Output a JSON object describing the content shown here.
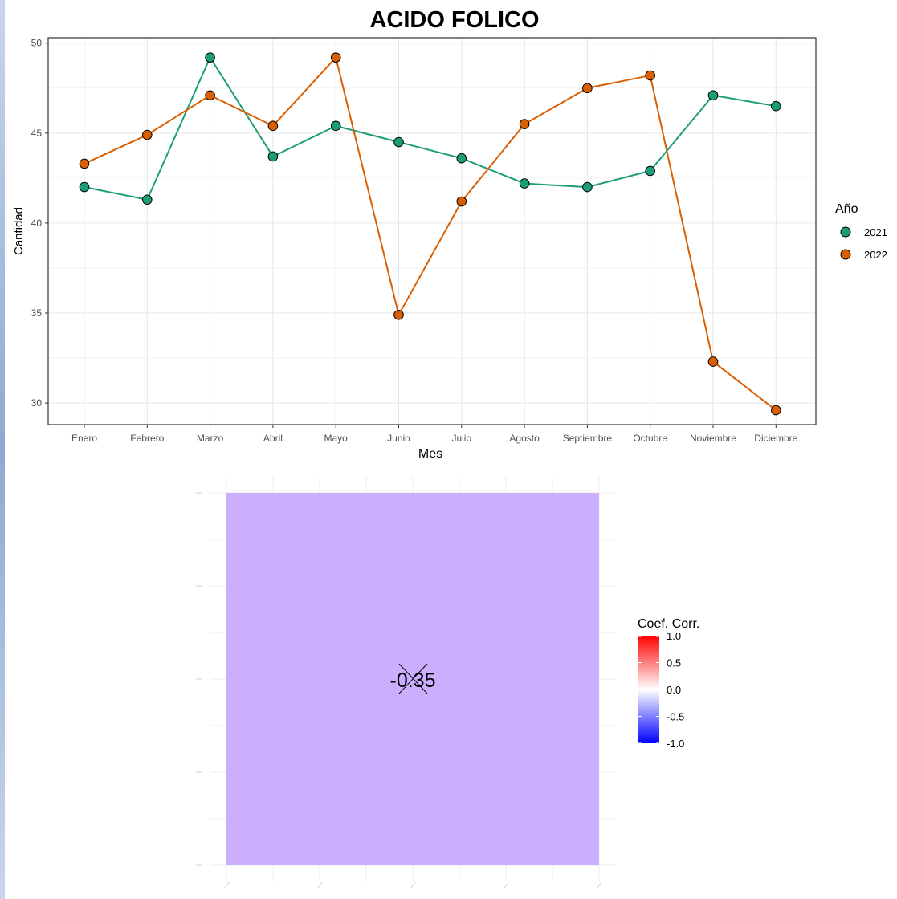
{
  "chart_data": [
    {
      "type": "line",
      "title": "ACIDO FOLICO",
      "xlabel": "Mes",
      "ylabel": "Cantidad",
      "categories": [
        "Enero",
        "Febrero",
        "Marzo",
        "Abril",
        "Mayo",
        "Junio",
        "Julio",
        "Agosto",
        "Septiembre",
        "Octubre",
        "Noviembre",
        "Diciembre"
      ],
      "ylim": [
        28.8,
        50.3
      ],
      "yticks": [
        30,
        35,
        40,
        45,
        50
      ],
      "grid": true,
      "legend_title": "Año",
      "legend_position": "right",
      "series": [
        {
          "name": "2021",
          "color": "#1b9e77",
          "values": [
            42.0,
            41.3,
            49.2,
            43.7,
            45.4,
            44.5,
            43.6,
            42.2,
            42.0,
            42.9,
            47.1,
            46.5
          ]
        },
        {
          "name": "2022",
          "color": "#d95f02",
          "values": [
            43.3,
            44.9,
            47.1,
            45.4,
            49.2,
            34.9,
            41.2,
            45.5,
            47.5,
            48.2,
            32.3,
            29.6
          ]
        }
      ]
    },
    {
      "type": "heatmap",
      "value": -0.35,
      "value_label": "-0.35",
      "cell_color": "#cbaefe",
      "legend_title": "Coef. Corr.",
      "legend_ticks": [
        "1.0",
        "0.5",
        "0.0",
        "-0.5",
        "-1.0"
      ],
      "legend_colors": {
        "high": "#ff0000",
        "mid": "#ffffff",
        "low": "#0000ff"
      },
      "insignificant_cross": true
    }
  ]
}
